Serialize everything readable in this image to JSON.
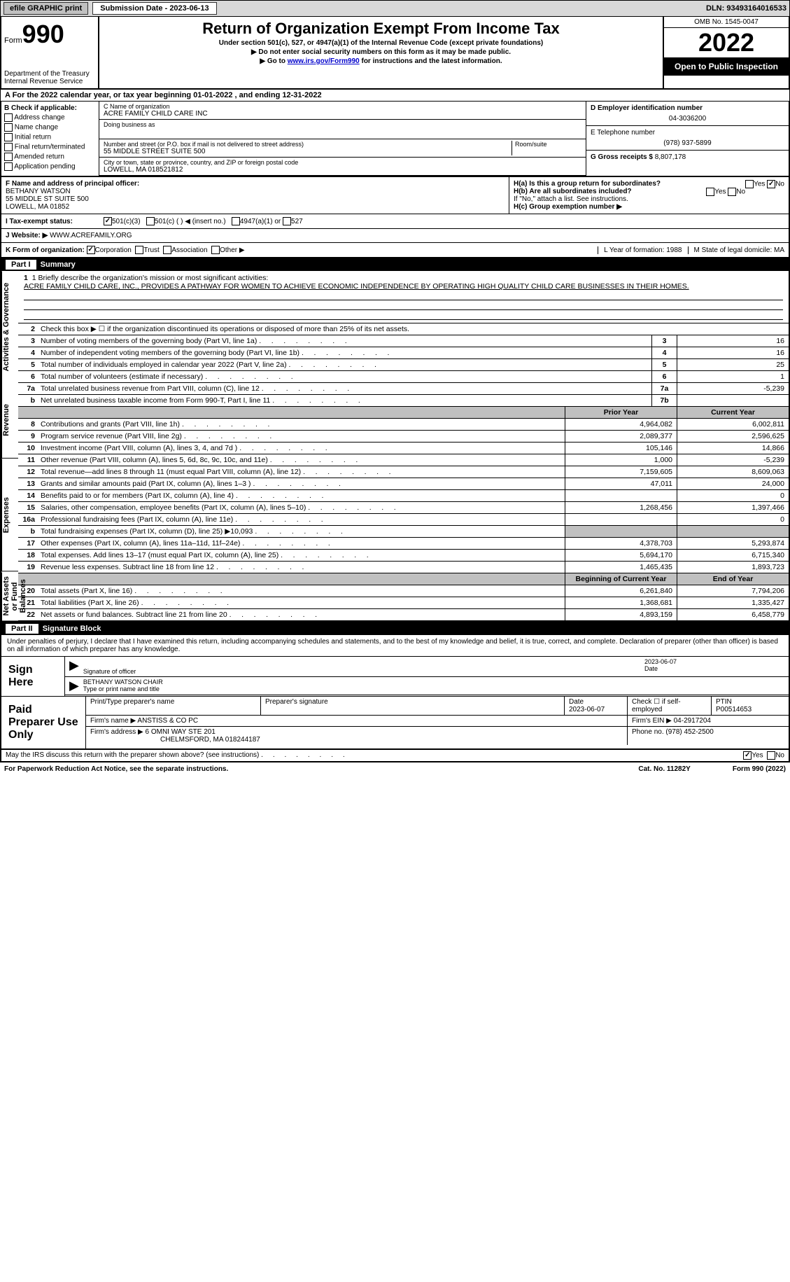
{
  "topbar": {
    "efile_label": "efile GRAPHIC print",
    "sub_date_label": "Submission Date - 2023-06-13",
    "dln": "DLN: 93493164016533"
  },
  "header": {
    "form_word": "Form",
    "form_num": "990",
    "dept": "Department of the Treasury Internal Revenue Service",
    "title": "Return of Organization Exempt From Income Tax",
    "sub1": "Under section 501(c), 527, or 4947(a)(1) of the Internal Revenue Code (except private foundations)",
    "sub2": "▶ Do not enter social security numbers on this form as it may be made public.",
    "sub3_pre": "▶ Go to ",
    "sub3_link": "www.irs.gov/Form990",
    "sub3_post": " for instructions and the latest information.",
    "omb": "OMB No. 1545-0047",
    "year": "2022",
    "open": "Open to Public Inspection"
  },
  "rowA": "A For the 2022 calendar year, or tax year beginning 01-01-2022    , and ending 12-31-2022",
  "colB": {
    "label": "B Check if applicable:",
    "items": [
      "Address change",
      "Name change",
      "Initial return",
      "Final return/terminated",
      "Amended return",
      "Application pending"
    ]
  },
  "colC": {
    "name_label": "C Name of organization",
    "name": "ACRE FAMILY CHILD CARE INC",
    "dba_label": "Doing business as",
    "dba": "",
    "street_label": "Number and street (or P.O. box if mail is not delivered to street address)",
    "street": "55 MIDDLE STREET SUITE 500",
    "room_label": "Room/suite",
    "city_label": "City or town, state or province, country, and ZIP or foreign postal code",
    "city": "LOWELL, MA  018521812"
  },
  "colDE": {
    "d_label": "D Employer identification number",
    "ein": "04-3036200",
    "e_label": "E Telephone number",
    "phone": "(978) 937-5899",
    "g_label": "G Gross receipts $",
    "gross": "8,807,178"
  },
  "rowFH": {
    "f_label": "F Name and address of principal officer:",
    "f_name": "BETHANY WATSON",
    "f_addr1": "55 MIDDLE ST SUITE 500",
    "f_addr2": "LOWELL, MA  01852",
    "ha": "H(a)  Is this a group return for subordinates?",
    "hb": "H(b)  Are all subordinates included?",
    "hb_note": "If \"No,\" attach a list. See instructions.",
    "hc": "H(c)  Group exemption number ▶",
    "yes": "Yes",
    "no": "No"
  },
  "status": {
    "label": "I   Tax-exempt status:",
    "opt1": "501(c)(3)",
    "opt2": "501(c) (   ) ◀ (insert no.)",
    "opt3": "4947(a)(1) or",
    "opt4": "527"
  },
  "website": {
    "label": "J   Website: ▶",
    "value": "WWW.ACREFAMILY.ORG"
  },
  "korg": {
    "k": "K Form of organization:",
    "corp": "Corporation",
    "trust": "Trust",
    "assoc": "Association",
    "other": "Other ▶",
    "l": "L Year of formation: 1988",
    "m": "M State of legal domicile: MA"
  },
  "part1": {
    "label": "Part I",
    "title": "Summary"
  },
  "summary": {
    "sideLabels": [
      "Activities & Governance",
      "Revenue",
      "Expenses",
      "Net Assets or Fund Balances"
    ],
    "line1_label": "1  Briefly describe the organization's mission or most significant activities:",
    "mission": "ACRE FAMILY CHILD CARE, INC., PROVIDES A PATHWAY FOR WOMEN TO ACHIEVE ECONOMIC INDEPENDENCE BY OPERATING HIGH QUALITY CHILD CARE BUSINESSES IN THEIR HOMES.",
    "line2": "Check this box ▶ ☐ if the organization discontinued its operations or disposed of more than 25% of its net assets.",
    "rows_ag": [
      {
        "n": "3",
        "d": "Number of voting members of the governing body (Part VI, line 1a)",
        "b": "3",
        "v": "16"
      },
      {
        "n": "4",
        "d": "Number of independent voting members of the governing body (Part VI, line 1b)",
        "b": "4",
        "v": "16"
      },
      {
        "n": "5",
        "d": "Total number of individuals employed in calendar year 2022 (Part V, line 2a)",
        "b": "5",
        "v": "25"
      },
      {
        "n": "6",
        "d": "Total number of volunteers (estimate if necessary)",
        "b": "6",
        "v": "1"
      },
      {
        "n": "7a",
        "d": "Total unrelated business revenue from Part VIII, column (C), line 12",
        "b": "7a",
        "v": "-5,239"
      },
      {
        "n": "b",
        "d": "Net unrelated business taxable income from Form 990-T, Part I, line 11",
        "b": "7b",
        "v": ""
      }
    ],
    "col_hdr_prior": "Prior Year",
    "col_hdr_curr": "Current Year",
    "rows_rev": [
      {
        "n": "8",
        "d": "Contributions and grants (Part VIII, line 1h)",
        "p": "4,964,082",
        "c": "6,002,811"
      },
      {
        "n": "9",
        "d": "Program service revenue (Part VIII, line 2g)",
        "p": "2,089,377",
        "c": "2,596,625"
      },
      {
        "n": "10",
        "d": "Investment income (Part VIII, column (A), lines 3, 4, and 7d )",
        "p": "105,146",
        "c": "14,866"
      },
      {
        "n": "11",
        "d": "Other revenue (Part VIII, column (A), lines 5, 6d, 8c, 9c, 10c, and 11e)",
        "p": "1,000",
        "c": "-5,239"
      },
      {
        "n": "12",
        "d": "Total revenue—add lines 8 through 11 (must equal Part VIII, column (A), line 12)",
        "p": "7,159,605",
        "c": "8,609,063"
      }
    ],
    "rows_exp": [
      {
        "n": "13",
        "d": "Grants and similar amounts paid (Part IX, column (A), lines 1–3 )",
        "p": "47,011",
        "c": "24,000"
      },
      {
        "n": "14",
        "d": "Benefits paid to or for members (Part IX, column (A), line 4)",
        "p": "",
        "c": "0"
      },
      {
        "n": "15",
        "d": "Salaries, other compensation, employee benefits (Part IX, column (A), lines 5–10)",
        "p": "1,268,456",
        "c": "1,397,466"
      },
      {
        "n": "16a",
        "d": "Professional fundraising fees (Part IX, column (A), line 11e)",
        "p": "",
        "c": "0"
      },
      {
        "n": "b",
        "d": "Total fundraising expenses (Part IX, column (D), line 25) ▶10,093",
        "p": "shaded",
        "c": "shaded"
      },
      {
        "n": "17",
        "d": "Other expenses (Part IX, column (A), lines 11a–11d, 11f–24e)",
        "p": "4,378,703",
        "c": "5,293,874"
      },
      {
        "n": "18",
        "d": "Total expenses. Add lines 13–17 (must equal Part IX, column (A), line 25)",
        "p": "5,694,170",
        "c": "6,715,340"
      },
      {
        "n": "19",
        "d": "Revenue less expenses. Subtract line 18 from line 12",
        "p": "1,465,435",
        "c": "1,893,723"
      }
    ],
    "col_hdr_beg": "Beginning of Current Year",
    "col_hdr_end": "End of Year",
    "rows_net": [
      {
        "n": "20",
        "d": "Total assets (Part X, line 16)",
        "p": "6,261,840",
        "c": "7,794,206"
      },
      {
        "n": "21",
        "d": "Total liabilities (Part X, line 26)",
        "p": "1,368,681",
        "c": "1,335,427"
      },
      {
        "n": "22",
        "d": "Net assets or fund balances. Subtract line 21 from line 20",
        "p": "4,893,159",
        "c": "6,458,779"
      }
    ]
  },
  "part2": {
    "label": "Part II",
    "title": "Signature Block"
  },
  "sig": {
    "decl": "Under penalties of perjury, I declare that I have examined this return, including accompanying schedules and statements, and to the best of my knowledge and belief, it is true, correct, and complete. Declaration of preparer (other than officer) is based on all information of which preparer has any knowledge.",
    "sign_here": "Sign Here",
    "sig_officer": "Signature of officer",
    "sig_date": "2023-06-07",
    "date_label": "Date",
    "officer_name": "BETHANY WATSON  CHAIR",
    "type_name": "Type or print name and title",
    "paid": "Paid Preparer Use Only",
    "prep_name_label": "Print/Type preparer's name",
    "prep_sig_label": "Preparer's signature",
    "prep_date": "2023-06-07",
    "check_self": "Check ☐ if self-employed",
    "ptin_label": "PTIN",
    "ptin": "P00514653",
    "firm_name_label": "Firm's name    ▶",
    "firm_name": "ANSTISS & CO PC",
    "firm_ein_label": "Firm's EIN ▶",
    "firm_ein": "04-2917204",
    "firm_addr_label": "Firm's address ▶",
    "firm_addr": "6 OMNI WAY STE 201",
    "firm_city": "CHELMSFORD, MA  018244187",
    "firm_phone_label": "Phone no.",
    "firm_phone": "(978) 452-2500"
  },
  "bottom": {
    "discuss": "May the IRS discuss this return with the preparer shown above? (see instructions)",
    "yes": "Yes",
    "no": "No"
  },
  "footer": {
    "left": "For Paperwork Reduction Act Notice, see the separate instructions.",
    "mid": "Cat. No. 11282Y",
    "right": "Form 990 (2022)"
  }
}
